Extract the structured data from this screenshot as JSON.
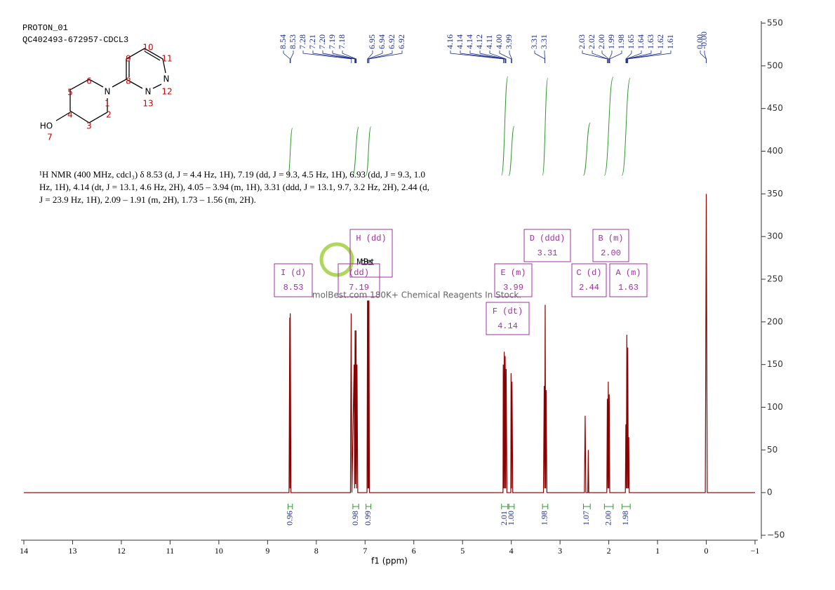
{
  "header": {
    "title": "PROTON_01",
    "subtitle": "QC402493-672957-CDCL3"
  },
  "structure": {
    "atoms": [
      "N",
      "N",
      "N",
      "HO"
    ],
    "numbers": [
      "1",
      "2",
      "3",
      "4",
      "5",
      "6",
      "7",
      "8",
      "9",
      "10",
      "11",
      "12",
      "13"
    ]
  },
  "description": "¹H NMR (400 MHz, cdcl₃) δ 8.53 (d, J = 4.4 Hz, 1H), 7.19 (dd, J = 9.3, 4.5 Hz, 1H), 6.93 (dd, J = 9.3, 1.0 Hz, 1H), 4.14 (dt, J = 13.1, 4.6 Hz, 2H), 4.05 – 3.94 (m, 1H), 3.31 (ddd, J = 13.1, 9.7, 3.2 Hz, 2H), 2.44 (d, J = 23.9 Hz, 1H), 2.09 – 1.91 (m, 2H), 1.73 – 1.56 (m, 2H).",
  "watermark": {
    "logo": "MolBest",
    "text": "molBest.com 180K+ Chemical Reagents In Stock."
  },
  "chart_data": {
    "type": "line",
    "x_label": "f1 (ppm)",
    "color": "#8b0000",
    "x": [
      14,
      8.56,
      8.545,
      8.54,
      8.535,
      8.52,
      7.3,
      7.285,
      7.27,
      7.225,
      7.215,
      7.205,
      7.195,
      7.185,
      7.175,
      7.165,
      7.15,
      6.96,
      6.95,
      6.94,
      6.935,
      6.925,
      6.92,
      6.91,
      4.17,
      4.165,
      4.155,
      4.145,
      4.135,
      4.125,
      4.115,
      4.105,
      4.09,
      4.01,
      4.005,
      3.995,
      3.985,
      3.97,
      3.34,
      3.325,
      3.315,
      3.305,
      3.295,
      3.285,
      3.27,
      2.5,
      2.485,
      2.47,
      2.43,
      2.42,
      2.41,
      2.04,
      2.03,
      2.02,
      2.01,
      2,
      1.99,
      1.98,
      1.66,
      1.65,
      1.64,
      1.63,
      1.62,
      1.61,
      1.6,
      1.59,
      1.58,
      0.02,
      0,
      -0.02,
      -1
    ],
    "values": [
      0,
      0,
      205,
      5,
      210,
      0,
      0,
      210,
      0,
      150,
      5,
      190,
      10,
      190,
      5,
      150,
      0,
      0,
      225,
      5,
      225,
      5,
      225,
      0,
      0,
      150,
      5,
      165,
      5,
      160,
      5,
      145,
      0,
      0,
      140,
      5,
      130,
      0,
      0,
      125,
      5,
      220,
      5,
      120,
      0,
      0,
      90,
      0,
      0,
      50,
      0,
      0,
      110,
      5,
      130,
      5,
      115,
      0,
      0,
      80,
      5,
      185,
      5,
      170,
      5,
      65,
      0,
      0,
      350,
      0,
      0
    ],
    "xlim": [
      14,
      -1
    ],
    "xticks": [
      14,
      13,
      12,
      11,
      10,
      9,
      8,
      7,
      6,
      5,
      4,
      3,
      2,
      1,
      0,
      {
        "value": -1,
        "label": "−1"
      }
    ],
    "ylim": [
      -50,
      550
    ],
    "yticks": [
      {
        "value": -50,
        "label": "−50"
      },
      0,
      50,
      100,
      150,
      200,
      250,
      300,
      350,
      400,
      450,
      500,
      550
    ],
    "peak_labels": [
      "8.54",
      "8.53",
      "7.28",
      "7.21",
      "7.20",
      "7.19",
      "7.18",
      "6.95",
      "6.94",
      "6.92",
      "6.92",
      "4.16",
      "4.14",
      "4.14",
      "4.12",
      "4.11",
      "4.00",
      "3.99",
      "3.31",
      "3.31",
      "2.03",
      "2.02",
      "2.00",
      "1.99",
      "1.98",
      "1.65",
      "1.64",
      "1.63",
      "1.62",
      "1.61",
      "0.00",
      "-0.00"
    ],
    "multiplets": [
      {
        "label": "I (d)",
        "shift": "8.53"
      },
      {
        "label": "H (dd)"
      },
      {
        "label": "(dd)",
        "shift": "7.19"
      },
      {
        "label": "E (m)",
        "shift": "3.99"
      },
      {
        "label": "F (dt)",
        "shift": "4.14"
      },
      {
        "label": "D (ddd)",
        "shift": "3.31"
      },
      {
        "label": "C (d)",
        "shift": "2.44"
      },
      {
        "label": "B (m)",
        "shift": "2.00"
      },
      {
        "label": "A (m)",
        "shift": "1.63"
      }
    ],
    "integrals": {
      "ranges": [
        [
          8.58,
          8.49
        ],
        [
          7.25,
          7.13
        ],
        [
          6.98,
          6.88
        ],
        [
          4.2,
          4.07
        ],
        [
          4.05,
          3.94
        ],
        [
          3.36,
          3.25
        ],
        [
          2.52,
          2.38
        ],
        [
          2.09,
          1.91
        ],
        [
          1.73,
          1.56
        ]
      ],
      "values": [
        0.96,
        0.98,
        0.99,
        2.01,
        1,
        1.98,
        1.07,
        2,
        1.98
      ],
      "value_labels": [
        "0.96",
        "0.98",
        "0.99",
        "2.01",
        "1.00",
        "1.98",
        "1.07",
        "2.00",
        "1.98"
      ]
    }
  }
}
